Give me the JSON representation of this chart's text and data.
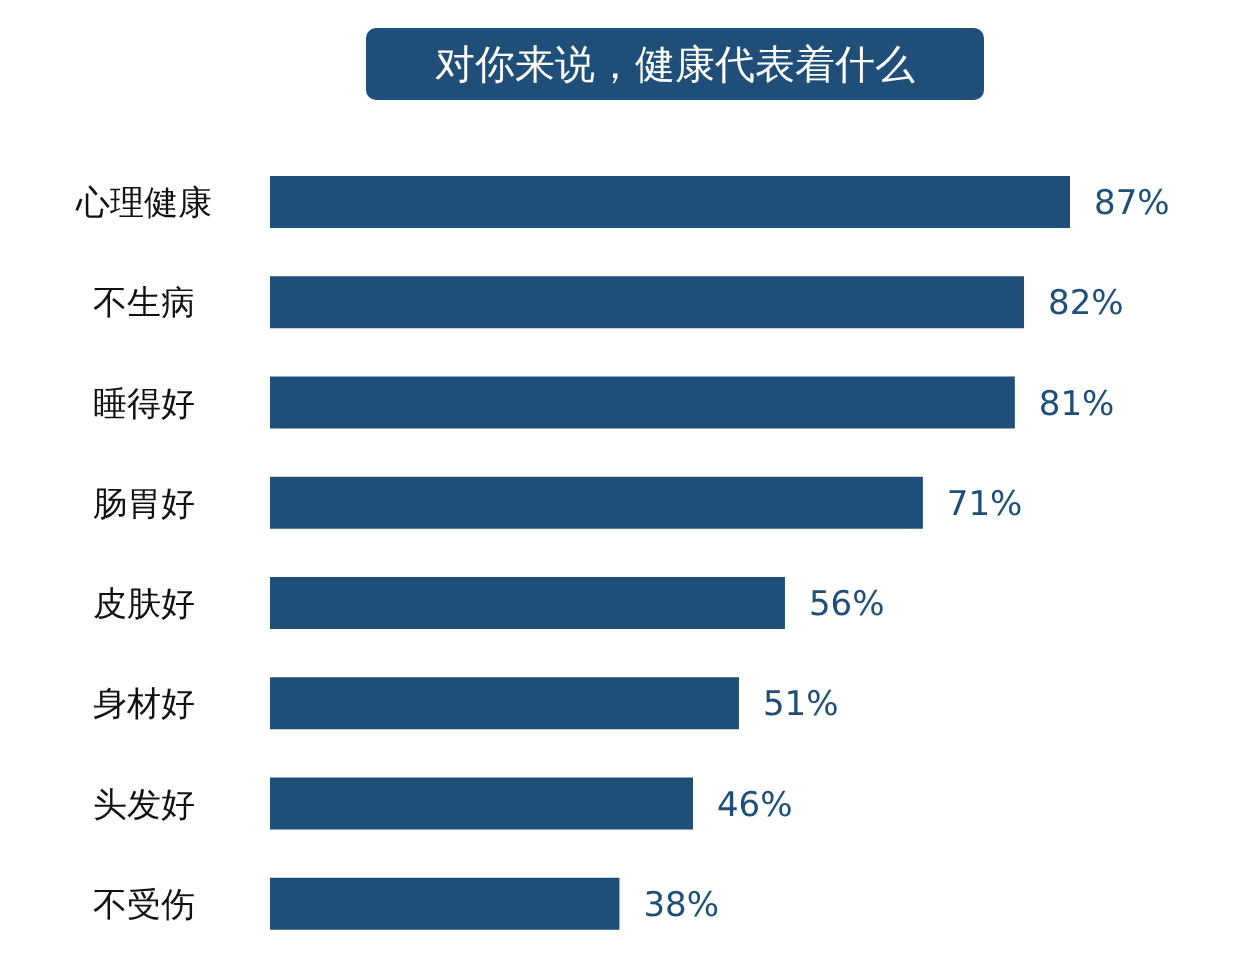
{
  "chart_data": {
    "type": "bar",
    "orientation": "horizontal",
    "title": "对你来说，健康代表着什么",
    "categories": [
      "心理健康",
      "不生病",
      "睡得好",
      "肠胃好",
      "皮肤好",
      "身材好",
      "头发好",
      "不受伤"
    ],
    "values": [
      87,
      82,
      81,
      71,
      56,
      51,
      46,
      38
    ],
    "value_labels": [
      "87%",
      "82%",
      "81%",
      "71%",
      "56%",
      "51%",
      "46%",
      "38%"
    ],
    "color": "#1f4e79",
    "grid": false,
    "legend": false
  }
}
